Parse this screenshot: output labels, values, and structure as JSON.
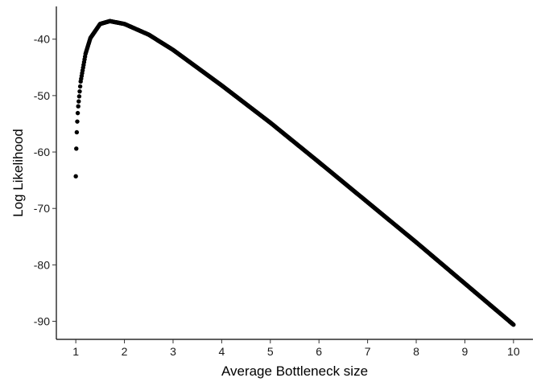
{
  "chart_data": {
    "type": "scatter",
    "title": "",
    "xlabel": "Average Bottleneck size",
    "ylabel": "Log Likelihood",
    "xlim": [
      0.6,
      10.4
    ],
    "ylim": [
      -93.2,
      -34.2
    ],
    "x_ticks": [
      1,
      2,
      3,
      4,
      5,
      6,
      7,
      8,
      9,
      10
    ],
    "y_ticks": [
      -90,
      -80,
      -70,
      -60,
      -50,
      -40
    ],
    "x_tick_labels": [
      "1",
      "2",
      "3",
      "4",
      "5",
      "6",
      "7",
      "8",
      "9",
      "10"
    ],
    "y_tick_labels": [
      "-90",
      "-80",
      "-70",
      "-60",
      "-50",
      "-40"
    ],
    "grid": false,
    "legend": "none",
    "marker_color": "#000000",
    "series": [
      {
        "x_range": [
          1.0,
          10.0
        ],
        "x_step": 0.01,
        "sample_points": [
          {
            "x": 1.0,
            "y": -64.3
          },
          {
            "x": 1.01,
            "y": -59.4
          },
          {
            "x": 1.02,
            "y": -56.5
          },
          {
            "x": 1.03,
            "y": -54.6
          },
          {
            "x": 1.04,
            "y": -53.1
          },
          {
            "x": 1.05,
            "y": -51.9
          },
          {
            "x": 1.1,
            "y": -47.5
          },
          {
            "x": 1.2,
            "y": -42.6
          },
          {
            "x": 1.3,
            "y": -39.8
          },
          {
            "x": 1.5,
            "y": -37.3
          },
          {
            "x": 1.7,
            "y": -36.8
          },
          {
            "x": 2.0,
            "y": -37.3
          },
          {
            "x": 2.5,
            "y": -39.2
          },
          {
            "x": 3.0,
            "y": -41.9
          },
          {
            "x": 4.0,
            "y": -48.2
          },
          {
            "x": 5.0,
            "y": -54.8
          },
          {
            "x": 6.0,
            "y": -61.8
          },
          {
            "x": 7.0,
            "y": -68.9
          },
          {
            "x": 8.0,
            "y": -76.0
          },
          {
            "x": 9.0,
            "y": -83.3
          },
          {
            "x": 10.0,
            "y": -90.6
          }
        ]
      }
    ]
  }
}
